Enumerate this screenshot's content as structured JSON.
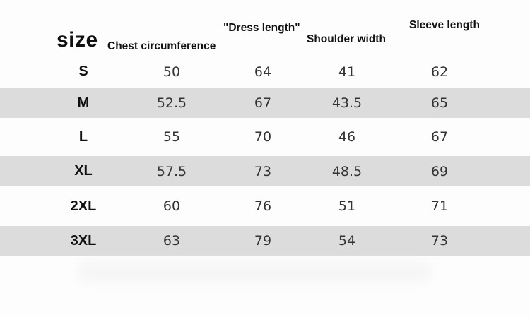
{
  "table": {
    "headers": {
      "size": "size",
      "chest": "Chest circumference",
      "length": "\"Dress length\"",
      "shoulder": "Shoulder width",
      "sleeve": "Sleeve length"
    },
    "rows": [
      {
        "size": "S",
        "chest": "50",
        "length": "64",
        "shoulder": "41",
        "sleeve": "62",
        "shaded": false
      },
      {
        "size": "M",
        "chest": "52.5",
        "length": "67",
        "shoulder": "43.5",
        "sleeve": "65",
        "shaded": true
      },
      {
        "size": "L",
        "chest": "55",
        "length": "70",
        "shoulder": "46",
        "sleeve": "67",
        "shaded": false
      },
      {
        "size": "XL",
        "chest": "57.5",
        "length": "73",
        "shoulder": "48.5",
        "sleeve": "69",
        "shaded": true
      },
      {
        "size": "2XL",
        "chest": "60",
        "length": "76",
        "shoulder": "51",
        "sleeve": "71",
        "shaded": false
      },
      {
        "size": "3XL",
        "chest": "63",
        "length": "79",
        "shoulder": "54",
        "sleeve": "73",
        "shaded": true
      }
    ]
  },
  "colors": {
    "background": "#fdfdfd",
    "shaded_row": "#dcdcdc",
    "text": "#333333"
  }
}
